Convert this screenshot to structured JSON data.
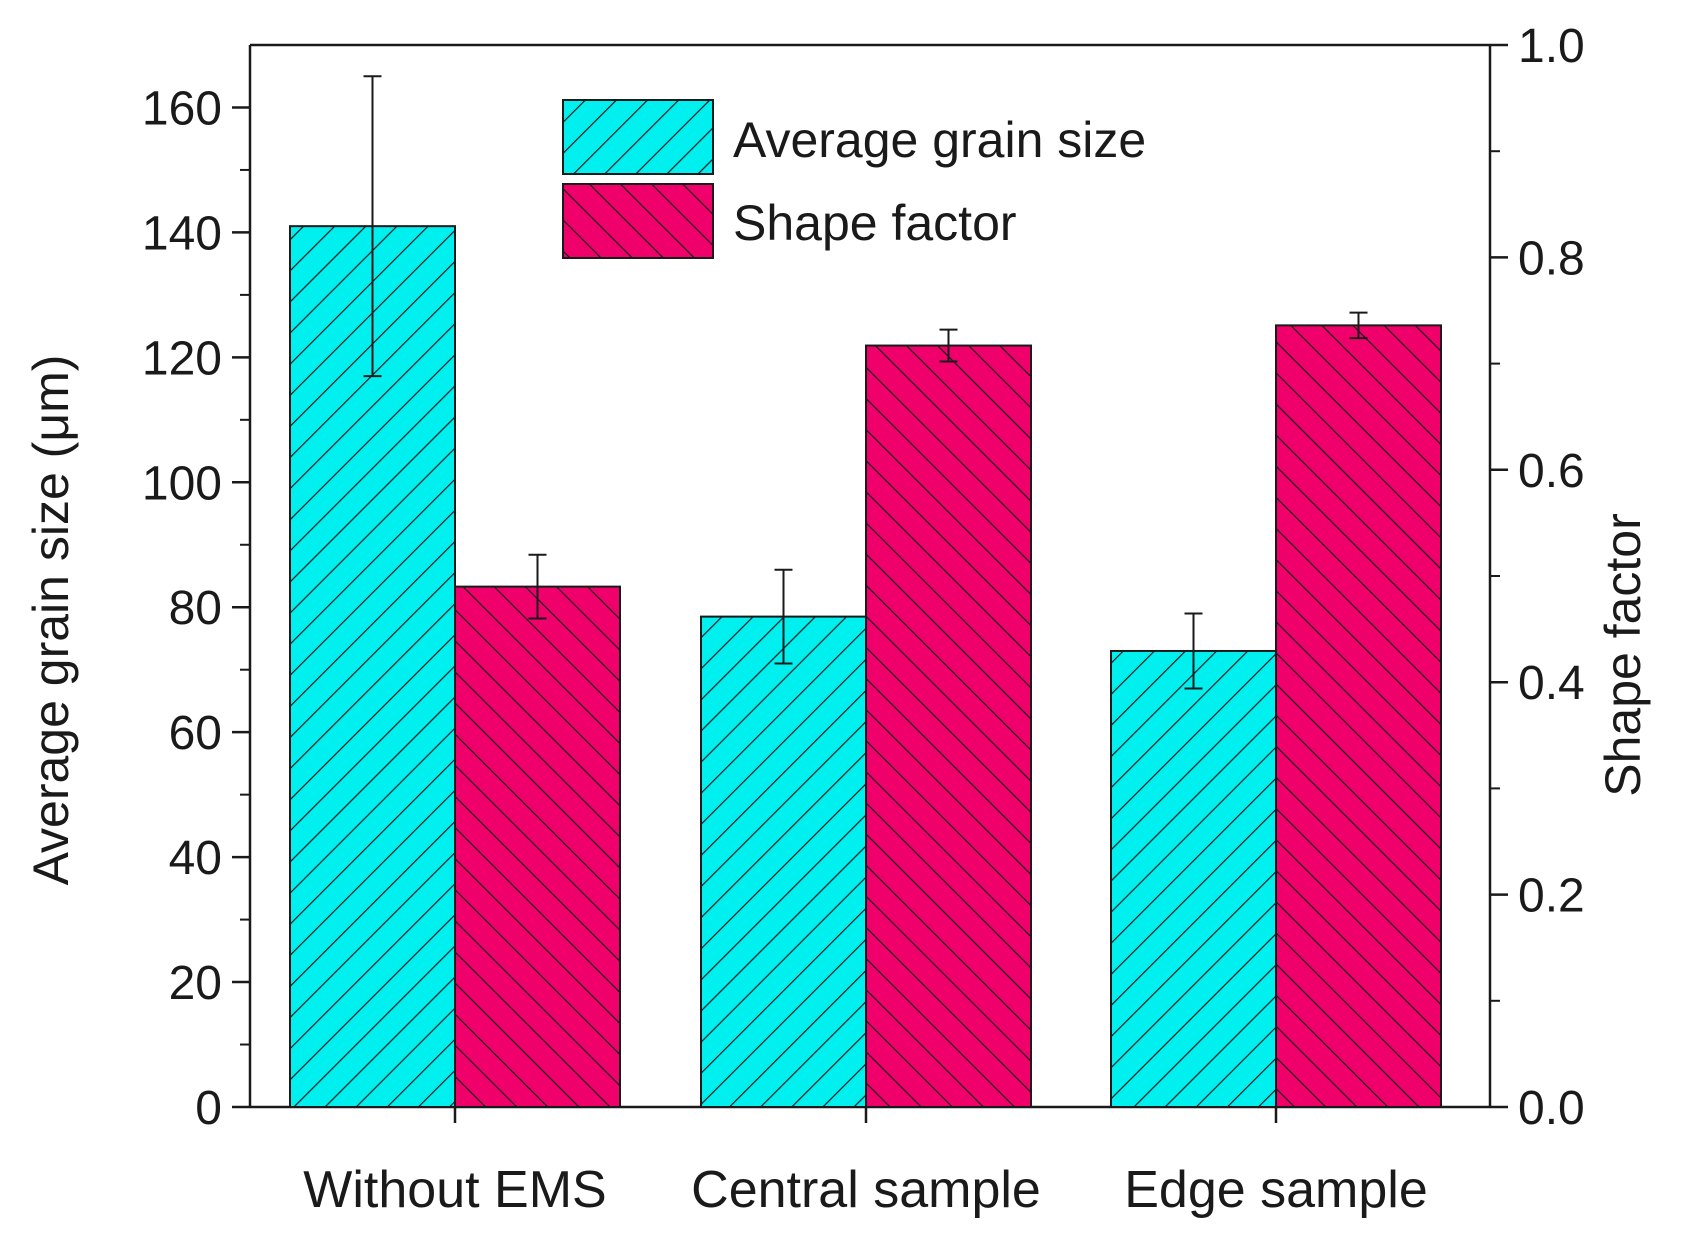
{
  "chart_data": {
    "type": "bar",
    "categories": [
      "Without EMS",
      "Central sample",
      "Edge sample"
    ],
    "series": [
      {
        "name": "Average grain size",
        "axis": "left",
        "color": "#00f0f0",
        "hatch": "forward",
        "values": [
          141,
          78.5,
          73
        ],
        "errors": [
          24,
          7.5,
          6
        ]
      },
      {
        "name": "Shape factor",
        "axis": "right",
        "color": "#f0006a",
        "hatch": "backward",
        "values": [
          0.49,
          0.717,
          0.736
        ],
        "errors": [
          0.03,
          0.015,
          0.012
        ]
      }
    ],
    "y_left": {
      "label": "Average grain size (μm)",
      "ylim": [
        0,
        170
      ],
      "ticks": [
        0,
        20,
        40,
        60,
        80,
        100,
        120,
        140,
        160
      ],
      "tick_labels": [
        "0",
        "20",
        "40",
        "60",
        "80",
        "100",
        "120",
        "140",
        "160"
      ]
    },
    "y_right": {
      "label": "Shape factor",
      "ylim": [
        0,
        1
      ],
      "ticks": [
        0,
        0.2,
        0.4,
        0.6,
        0.8,
        1.0
      ],
      "tick_labels": [
        "0.0",
        "0.2",
        "0.4",
        "0.6",
        "0.8",
        "1.0"
      ]
    },
    "legend_position": "top-center",
    "grid": false
  }
}
